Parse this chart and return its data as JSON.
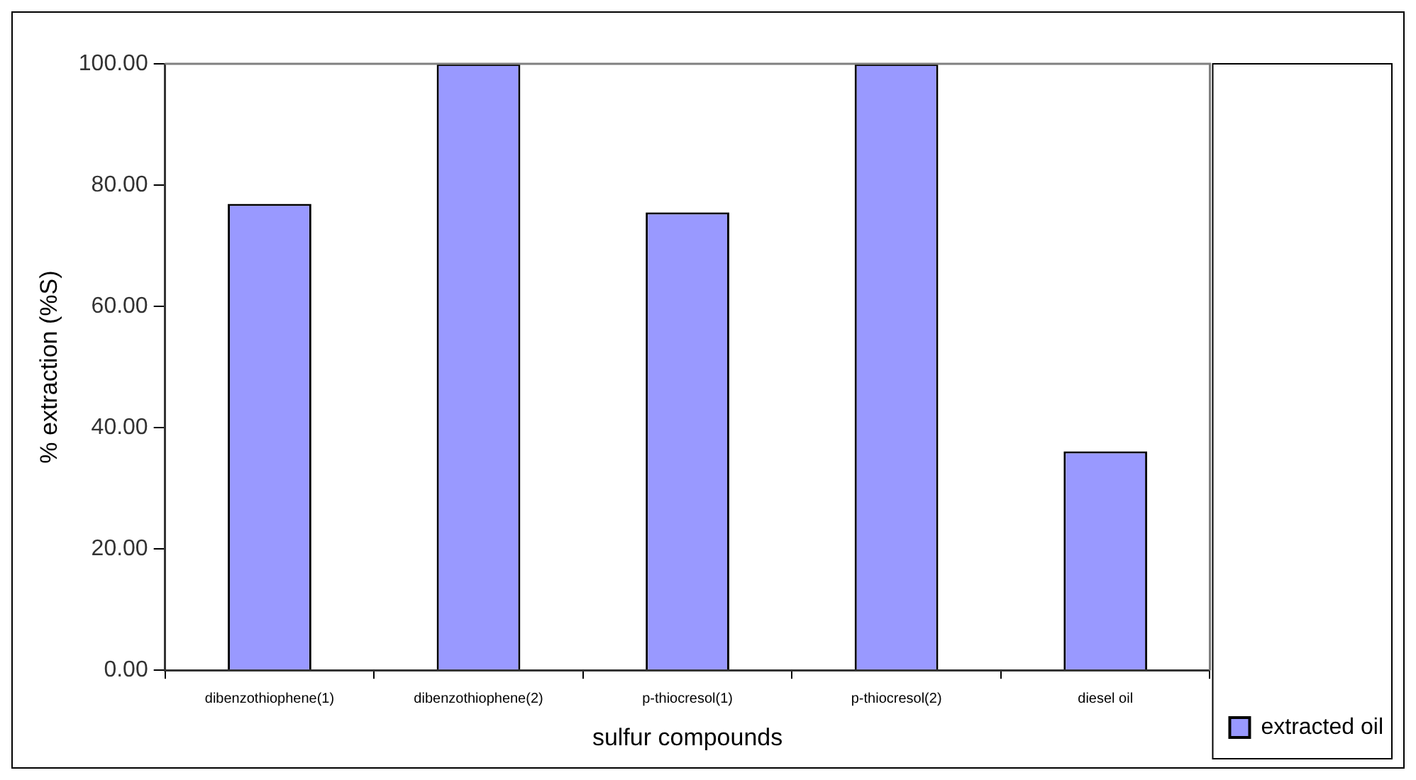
{
  "chart_data": {
    "type": "bar",
    "categories": [
      "dibenzothiophene(1)",
      "dibenzothiophene(2)",
      "p-thiocresol(1)",
      "p-thiocresol(2)",
      "diesel oil"
    ],
    "series": [
      {
        "name": "extracted oil",
        "color": "#9999ff",
        "values": [
          76.9,
          100,
          75.5,
          100,
          36.1
        ]
      }
    ],
    "xlabel": "sulfur compounds",
    "ylabel": "% extraction (%S)",
    "ylim": [
      0,
      100
    ],
    "yticks": [
      {
        "value": 0,
        "label": "0.00"
      },
      {
        "value": 20,
        "label": "20.00"
      },
      {
        "value": 40,
        "label": "40.00"
      },
      {
        "value": 60,
        "label": "60.00"
      },
      {
        "value": 80,
        "label": "80.00"
      },
      {
        "value": 100,
        "label": "100.00"
      }
    ],
    "grid": false,
    "legend": "bottom right"
  }
}
